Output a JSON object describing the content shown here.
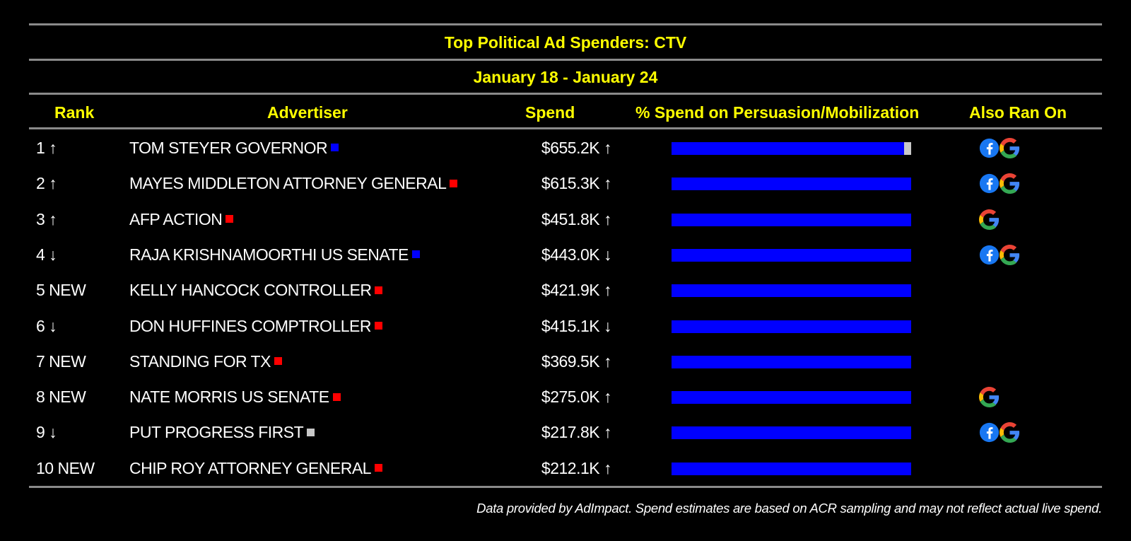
{
  "title": "Top Political Ad Spenders: CTV",
  "date_range": "January 18 - January 24",
  "columns": {
    "rank": "Rank",
    "advertiser": "Advertiser",
    "spend": "Spend",
    "persuasion": "% Spend on Persuasion/Mobilization",
    "also_ran": "Also Ran On"
  },
  "colors": {
    "accent_text": "#ffff00",
    "bar_main": "#0000ff",
    "bar_other": "#c8c8c8",
    "party_blue": "#0000ff",
    "party_red": "#ff0000",
    "party_gray": "#c8c8c8"
  },
  "chart_data": {
    "type": "table",
    "title": "Top Political Ad Spenders: CTV",
    "subtitle": "January 18 - January 24",
    "rows": [
      {
        "rank": "1 ↑",
        "advertiser": "TOM STEYER GOVERNOR",
        "party": "blue",
        "spend": "$655.2K ↑",
        "persuasion_pct": 97,
        "platforms": [
          "facebook-icon",
          "google-icon"
        ]
      },
      {
        "rank": "2 ↑",
        "advertiser": "MAYES MIDDLETON ATTORNEY GENERAL",
        "party": "red",
        "spend": "$615.3K ↑",
        "persuasion_pct": 100,
        "platforms": [
          "facebook-icon",
          "google-icon"
        ]
      },
      {
        "rank": "3 ↑",
        "advertiser": "AFP ACTION",
        "party": "red",
        "spend": "$451.8K ↑",
        "persuasion_pct": 100,
        "platforms": [
          "google-icon"
        ]
      },
      {
        "rank": "4 ↓",
        "advertiser": "RAJA KRISHNAMOORTHI US SENATE",
        "party": "blue",
        "spend": "$443.0K ↓",
        "persuasion_pct": 100,
        "platforms": [
          "facebook-icon",
          "google-icon"
        ]
      },
      {
        "rank": "5 NEW",
        "advertiser": "KELLY HANCOCK CONTROLLER",
        "party": "red",
        "spend": "$421.9K ↑",
        "persuasion_pct": 100,
        "platforms": []
      },
      {
        "rank": "6 ↓",
        "advertiser": "DON HUFFINES COMPTROLLER",
        "party": "red",
        "spend": "$415.1K ↓",
        "persuasion_pct": 100,
        "platforms": []
      },
      {
        "rank": "7 NEW",
        "advertiser": "STANDING FOR TX",
        "party": "red",
        "spend": "$369.5K ↑",
        "persuasion_pct": 100,
        "platforms": []
      },
      {
        "rank": "8 NEW",
        "advertiser": "NATE MORRIS US SENATE",
        "party": "red",
        "spend": "$275.0K ↑",
        "persuasion_pct": 100,
        "platforms": [
          "google-icon"
        ]
      },
      {
        "rank": "9 ↓",
        "advertiser": "PUT PROGRESS FIRST",
        "party": "gray",
        "spend": "$217.8K ↑",
        "persuasion_pct": 100,
        "platforms": [
          "facebook-icon",
          "google-icon"
        ]
      },
      {
        "rank": "10 NEW",
        "advertiser": "CHIP ROY ATTORNEY GENERAL",
        "party": "red",
        "spend": "$212.1K ↑",
        "persuasion_pct": 100,
        "platforms": []
      }
    ]
  },
  "footnote": "Data provided by AdImpact. Spend estimates are based on ACR sampling and may not reflect actual live spend."
}
